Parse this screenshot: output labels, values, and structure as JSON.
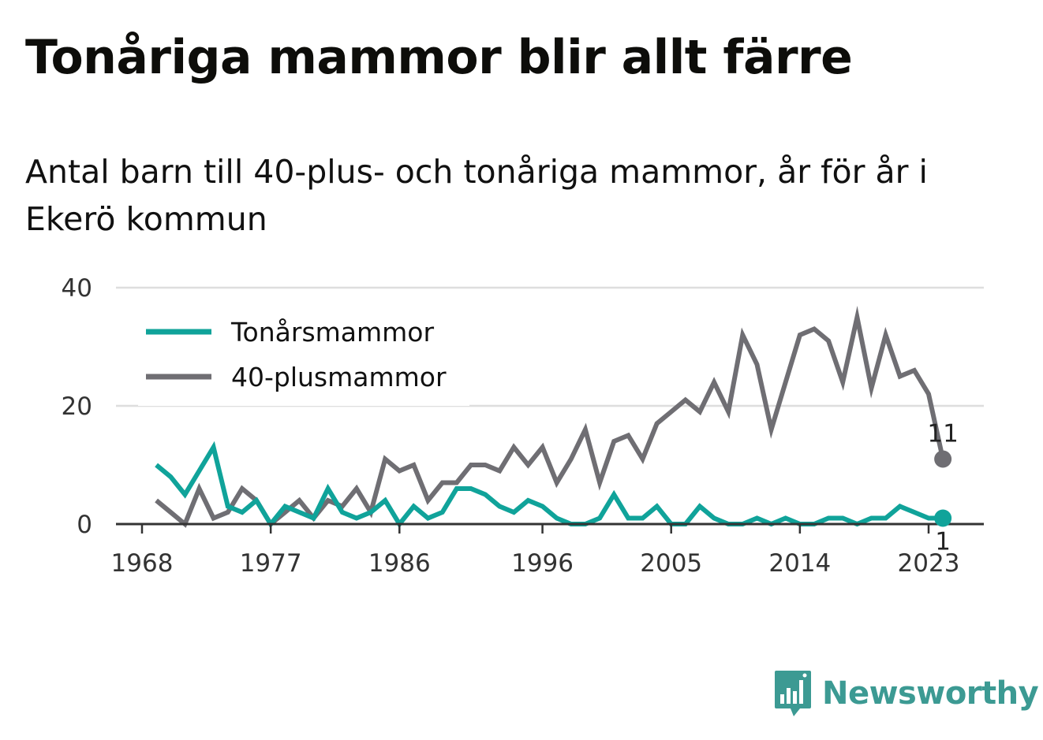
{
  "header": {
    "title": "Tonåriga mammor blir allt färre",
    "subtitle": "Antal barn till 40-plus- och tonåriga mammor, år för år i Ekerö kommun"
  },
  "brand": {
    "name": "Newsworthy",
    "color": "#3c9a93",
    "icon": "bar-chart-speech-bubble-icon"
  },
  "chart_data": {
    "type": "line",
    "x": [
      1969,
      1970,
      1971,
      1972,
      1973,
      1974,
      1975,
      1976,
      1977,
      1978,
      1979,
      1980,
      1981,
      1982,
      1983,
      1984,
      1985,
      1986,
      1987,
      1988,
      1989,
      1990,
      1991,
      1992,
      1993,
      1994,
      1995,
      1996,
      1997,
      1998,
      1999,
      2000,
      2001,
      2002,
      2003,
      2004,
      2005,
      2006,
      2007,
      2008,
      2009,
      2010,
      2011,
      2012,
      2013,
      2014,
      2015,
      2016,
      2017,
      2018,
      2019,
      2020,
      2021,
      2022,
      2023,
      2024
    ],
    "x_ticks": [
      1968,
      1977,
      1986,
      1996,
      2005,
      2014,
      2023
    ],
    "y_ticks": [
      0,
      20,
      40
    ],
    "ylim": [
      0,
      40
    ],
    "series": [
      {
        "name": "Tonårsmammor",
        "color": "#10a39a",
        "values": [
          10,
          8,
          5,
          9,
          13,
          3,
          2,
          4,
          0,
          3,
          2,
          1,
          6,
          2,
          1,
          2,
          4,
          0,
          3,
          1,
          2,
          6,
          6,
          5,
          3,
          2,
          4,
          3,
          1,
          0,
          0,
          1,
          5,
          1,
          1,
          3,
          0,
          0,
          3,
          1,
          0,
          0,
          1,
          0,
          1,
          0,
          0,
          1,
          1,
          0,
          1,
          1,
          3,
          2,
          1,
          1
        ],
        "end_label": "1"
      },
      {
        "name": "40-plusmammor",
        "color": "#6f6e73",
        "values": [
          4,
          2,
          0,
          6,
          1,
          2,
          6,
          4,
          0,
          2,
          4,
          1,
          4,
          3,
          6,
          2,
          11,
          9,
          10,
          4,
          7,
          7,
          10,
          10,
          9,
          13,
          10,
          13,
          7,
          11,
          16,
          7,
          14,
          15,
          11,
          17,
          19,
          21,
          19,
          24,
          19,
          32,
          27,
          16,
          24,
          32,
          33,
          31,
          24,
          35,
          23,
          32,
          25,
          26,
          22,
          11
        ],
        "end_label": "11"
      }
    ],
    "legend_position": "top-left",
    "grid": true
  }
}
